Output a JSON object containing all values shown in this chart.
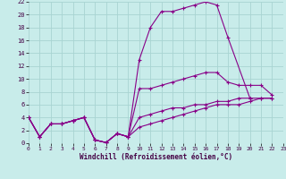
{
  "background_color": "#c8ecea",
  "grid_color": "#a8d4d2",
  "line_color": "#880088",
  "xlabel": "Windchill (Refroidissement éolien,°C)",
  "xlim": [
    0,
    23
  ],
  "ylim": [
    0,
    22
  ],
  "xtick_vals": [
    0,
    1,
    2,
    3,
    4,
    5,
    6,
    7,
    8,
    9,
    10,
    11,
    12,
    13,
    14,
    15,
    16,
    17,
    18,
    19,
    20,
    21,
    22,
    23
  ],
  "ytick_vals": [
    0,
    2,
    4,
    6,
    8,
    10,
    12,
    14,
    16,
    18,
    20,
    22
  ],
  "series": [
    {
      "x": [
        0,
        1,
        2,
        3,
        4,
        5,
        6,
        7,
        8,
        9,
        10,
        11,
        12,
        13,
        14,
        15,
        16,
        17,
        18,
        20
      ],
      "y": [
        4,
        1,
        3,
        3,
        3.5,
        4,
        0.5,
        0.1,
        1.5,
        1,
        13,
        18,
        20.5,
        20.5,
        21,
        21.5,
        22,
        21.5,
        16.5,
        7
      ]
    },
    {
      "x": [
        0,
        1,
        2,
        3,
        4,
        5,
        6,
        7,
        8,
        9,
        10,
        11,
        12,
        13,
        14,
        15,
        16,
        17,
        18,
        19,
        20,
        21,
        22
      ],
      "y": [
        4,
        1,
        3,
        3,
        3.5,
        4,
        0.5,
        0.1,
        1.5,
        1,
        8.5,
        8.5,
        9,
        9.5,
        10,
        10.5,
        11,
        11,
        9.5,
        9,
        9,
        9,
        7.5
      ]
    },
    {
      "x": [
        0,
        1,
        2,
        3,
        4,
        5,
        6,
        7,
        8,
        9,
        10,
        11,
        12,
        13,
        14,
        15,
        16,
        17,
        18,
        19,
        20,
        21,
        22
      ],
      "y": [
        4,
        1,
        3,
        3,
        3.5,
        4,
        0.5,
        0.1,
        1.5,
        1,
        4,
        4.5,
        5,
        5.5,
        5.5,
        6,
        6,
        6.5,
        6.5,
        7,
        7,
        7,
        7
      ]
    },
    {
      "x": [
        0,
        1,
        2,
        3,
        4,
        5,
        6,
        7,
        8,
        9,
        10,
        11,
        12,
        13,
        14,
        15,
        16,
        17,
        18,
        19,
        20,
        21,
        22
      ],
      "y": [
        4,
        1,
        3,
        3,
        3.5,
        4,
        0.5,
        0.1,
        1.5,
        1,
        2.5,
        3,
        3.5,
        4,
        4.5,
        5,
        5.5,
        6,
        6,
        6,
        6.5,
        7,
        7
      ]
    }
  ]
}
